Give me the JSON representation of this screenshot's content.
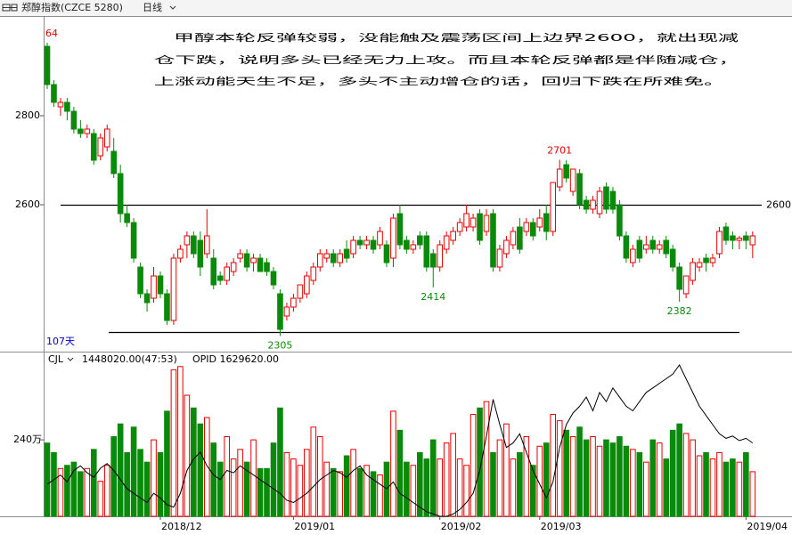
{
  "chart_data": {
    "type": "candlestick",
    "title": "郑醇指数(CZCE 5280)",
    "period": "日线",
    "annotation": [
      "甲醇本轮反弹较弱，没能触及震荡区间上边界2600，就出现减",
      "仓下跌，说明多头已经无力上攻。而且本轮反弹都是伴随减仓，",
      "上涨动能天生不足，多头不主动增仓的话，回归下跌在所难免。"
    ],
    "days_label": "107天",
    "up_color": "#e60000",
    "down_color": "#0a8a0a",
    "categories": [
      null,
      null,
      null,
      null,
      null,
      null,
      null,
      null,
      null,
      null,
      null,
      null,
      null,
      null,
      null,
      null,
      null,
      "2018/12",
      null,
      null,
      null,
      null,
      null,
      null,
      null,
      null,
      null,
      null,
      null,
      null,
      null,
      null,
      null,
      null,
      null,
      null,
      null,
      "2019/01",
      null,
      null,
      null,
      null,
      null,
      null,
      null,
      null,
      null,
      null,
      null,
      null,
      null,
      null,
      null,
      null,
      null,
      null,
      null,
      null,
      null,
      "2019/02",
      null,
      null,
      null,
      null,
      null,
      null,
      null,
      null,
      null,
      null,
      null,
      null,
      null,
      null,
      "2019/03",
      null,
      null,
      null,
      null,
      null,
      null,
      null,
      null,
      null,
      null,
      null,
      null,
      null,
      null,
      null,
      null,
      null,
      null,
      null,
      null,
      null,
      null,
      null,
      null,
      null,
      null,
      null,
      null,
      null,
      null,
      "2019/04",
      null
    ],
    "open": [
      2956,
      2870,
      2820,
      2830,
      2810,
      2770,
      2760,
      2760,
      2710,
      2730,
      2720,
      2670,
      2580,
      2560,
      2460,
      2400,
      2390,
      2440,
      2400,
      2340,
      2480,
      2510,
      2530,
      2520,
      2490,
      2480,
      2440,
      2430,
      2450,
      2480,
      2490,
      2470,
      2480,
      2470,
      2450,
      2400,
      2350,
      2370,
      2390,
      2400,
      2430,
      2460,
      2480,
      2490,
      2470,
      2500,
      2490,
      2520,
      2510,
      2520,
      2510,
      2510,
      2480,
      2580,
      2520,
      2500,
      2530,
      2530,
      2490,
      2460,
      2500,
      2520,
      2540,
      2550,
      2550,
      2580,
      2540,
      2580,
      2460,
      2490,
      2510,
      2550,
      2540,
      2560,
      2550,
      2580,
      2540,
      2640,
      2690,
      2630,
      2670,
      2610,
      2590,
      2580,
      2640,
      2630,
      2600,
      2530,
      2470,
      2520,
      2500,
      2520,
      2500,
      2520,
      2500,
      2460,
      2400,
      2430,
      2460,
      2480,
      2470,
      2490,
      2550,
      2530,
      2520,
      2530,
      2510
    ],
    "high": [
      2964,
      2880,
      2840,
      2840,
      2820,
      2790,
      2780,
      2770,
      2760,
      2780,
      2750,
      2690,
      2600,
      2570,
      2470,
      2410,
      2460,
      2450,
      2410,
      2490,
      2510,
      2540,
      2540,
      2540,
      2590,
      2500,
      2450,
      2470,
      2480,
      2500,
      2500,
      2490,
      2490,
      2480,
      2460,
      2410,
      2380,
      2400,
      2420,
      2450,
      2470,
      2500,
      2500,
      2500,
      2500,
      2520,
      2530,
      2530,
      2530,
      2530,
      2550,
      2520,
      2580,
      2600,
      2530,
      2520,
      2540,
      2540,
      2500,
      2520,
      2540,
      2550,
      2570,
      2600,
      2580,
      2590,
      2590,
      2590,
      2510,
      2530,
      2550,
      2570,
      2570,
      2570,
      2590,
      2600,
      2650,
      2701,
      2700,
      2680,
      2680,
      2620,
      2620,
      2640,
      2650,
      2640,
      2610,
      2540,
      2510,
      2530,
      2530,
      2530,
      2520,
      2530,
      2510,
      2470,
      2440,
      2480,
      2480,
      2490,
      2490,
      2550,
      2560,
      2540,
      2530,
      2540,
      2540
    ],
    "low": [
      2860,
      2820,
      2800,
      2790,
      2760,
      2750,
      2750,
      2690,
      2700,
      2720,
      2660,
      2560,
      2550,
      2470,
      2390,
      2360,
      2380,
      2390,
      2330,
      2330,
      2470,
      2480,
      2480,
      2440,
      2480,
      2410,
      2420,
      2420,
      2440,
      2470,
      2450,
      2450,
      2450,
      2440,
      2410,
      2305,
      2340,
      2360,
      2380,
      2390,
      2420,
      2450,
      2470,
      2460,
      2460,
      2470,
      2480,
      2500,
      2500,
      2490,
      2500,
      2460,
      2460,
      2500,
      2490,
      2490,
      2500,
      2450,
      2414,
      2450,
      2490,
      2510,
      2530,
      2540,
      2540,
      2510,
      2530,
      2450,
      2450,
      2480,
      2500,
      2490,
      2530,
      2520,
      2540,
      2520,
      2530,
      2630,
      2650,
      2620,
      2590,
      2580,
      2580,
      2570,
      2580,
      2580,
      2520,
      2470,
      2460,
      2470,
      2490,
      2490,
      2490,
      2480,
      2450,
      2382,
      2390,
      2420,
      2450,
      2450,
      2460,
      2480,
      2510,
      2500,
      2500,
      2500,
      2480
    ],
    "close": [
      2870,
      2830,
      2830,
      2810,
      2770,
      2760,
      2770,
      2700,
      2750,
      2770,
      2670,
      2580,
      2560,
      2480,
      2400,
      2380,
      2440,
      2400,
      2340,
      2480,
      2500,
      2530,
      2490,
      2460,
      2530,
      2420,
      2430,
      2460,
      2470,
      2490,
      2460,
      2480,
      2450,
      2450,
      2420,
      2320,
      2370,
      2390,
      2420,
      2440,
      2460,
      2490,
      2490,
      2470,
      2490,
      2480,
      2520,
      2510,
      2520,
      2500,
      2540,
      2470,
      2570,
      2510,
      2500,
      2510,
      2510,
      2460,
      2460,
      2510,
      2530,
      2540,
      2560,
      2580,
      2570,
      2520,
      2576,
      2460,
      2500,
      2520,
      2540,
      2500,
      2560,
      2530,
      2570,
      2540,
      2650,
      2680,
      2660,
      2680,
      2600,
      2590,
      2610,
      2630,
      2590,
      2590,
      2530,
      2480,
      2500,
      2480,
      2510,
      2500,
      2510,
      2490,
      2460,
      2410,
      2440,
      2470,
      2470,
      2470,
      2480,
      2540,
      2520,
      2520,
      2525,
      2520,
      2530
    ],
    "ylim": [
      2270,
      3020
    ],
    "yticks": [
      2800,
      2600
    ],
    "hlines": [
      {
        "value": 2600,
        "label": "2600"
      },
      {
        "value": 2314
      }
    ],
    "extremes": [
      {
        "value": 2964,
        "label": "64"
      },
      2701,
      2414,
      2382,
      2305
    ],
    "volume": {
      "label": "CJL",
      "readout": "1448020.00(47:53)",
      "values": [
        230,
        200,
        150,
        160,
        170,
        140,
        150,
        210,
        110,
        160,
        250,
        290,
        200,
        280,
        210,
        170,
        240,
        200,
        330,
        460,
        470,
        380,
        340,
        290,
        310,
        230,
        170,
        250,
        180,
        210,
        170,
        240,
        150,
        150,
        230,
        340,
        200,
        180,
        160,
        210,
        280,
        250,
        170,
        150,
        140,
        190,
        210,
        150,
        160,
        140,
        130,
        170,
        330,
        270,
        170,
        160,
        200,
        180,
        240,
        180,
        230,
        260,
        180,
        160,
        320,
        340,
        360,
        200,
        240,
        290,
        180,
        200,
        250,
        160,
        220,
        230,
        320,
        300,
        270,
        250,
        280,
        240,
        250,
        220,
        240,
        230,
        250,
        220,
        210,
        200,
        170,
        240,
        230,
        180,
        270,
        290,
        260,
        240,
        190,
        200,
        180,
        200,
        170,
        180,
        170,
        200,
        140
      ],
      "ylim": [
        0,
        475
      ],
      "yticks": [
        {
          "value": 240,
          "label": "240万"
        }
      ]
    },
    "open_interest": {
      "label": "OPID 1629620.00",
      "color": "#000000",
      "values": [
        144,
        146,
        148,
        145,
        150,
        152,
        149,
        147,
        151,
        153,
        150,
        146,
        142,
        140,
        138,
        136,
        140,
        138,
        135,
        134,
        140,
        150,
        155,
        158,
        152,
        148,
        146,
        150,
        149,
        152,
        150,
        148,
        146,
        144,
        142,
        140,
        137,
        136,
        138,
        140,
        143,
        146,
        148,
        150,
        149,
        147,
        150,
        152,
        148,
        146,
        144,
        142,
        145,
        140,
        138,
        136,
        134,
        132,
        131,
        130,
        130,
        131,
        133,
        136,
        140,
        150,
        165,
        181,
        170,
        160,
        162,
        166,
        158,
        150,
        144,
        138,
        145,
        160,
        170,
        175,
        178,
        182,
        176,
        184,
        180,
        186,
        182,
        178,
        176,
        180,
        184,
        186,
        188,
        190,
        192,
        196,
        190,
        184,
        178,
        174,
        170,
        166,
        164,
        165,
        163,
        164,
        162
      ],
      "y2lim": [
        130,
        196
      ]
    }
  }
}
